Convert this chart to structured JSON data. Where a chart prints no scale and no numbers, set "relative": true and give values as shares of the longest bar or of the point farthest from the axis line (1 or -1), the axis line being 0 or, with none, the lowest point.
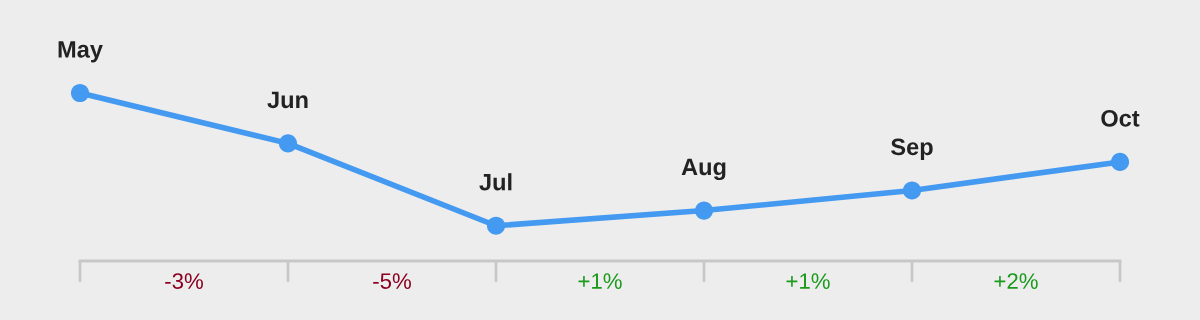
{
  "chart_data": {
    "type": "line",
    "relative": true,
    "categories": [
      "May",
      "Jun",
      "Jul",
      "Aug",
      "Sep",
      "Oct"
    ],
    "series": [
      {
        "color": "#4499f0",
        "values": [
          1,
          0.7,
          0.21,
          0.3,
          0.42,
          0.59
        ]
      }
    ],
    "marker": "circle",
    "line_style": "solid",
    "annotations": [
      "-3%",
      "-5%",
      "+1%",
      "+1%",
      "+2%"
    ]
  }
}
